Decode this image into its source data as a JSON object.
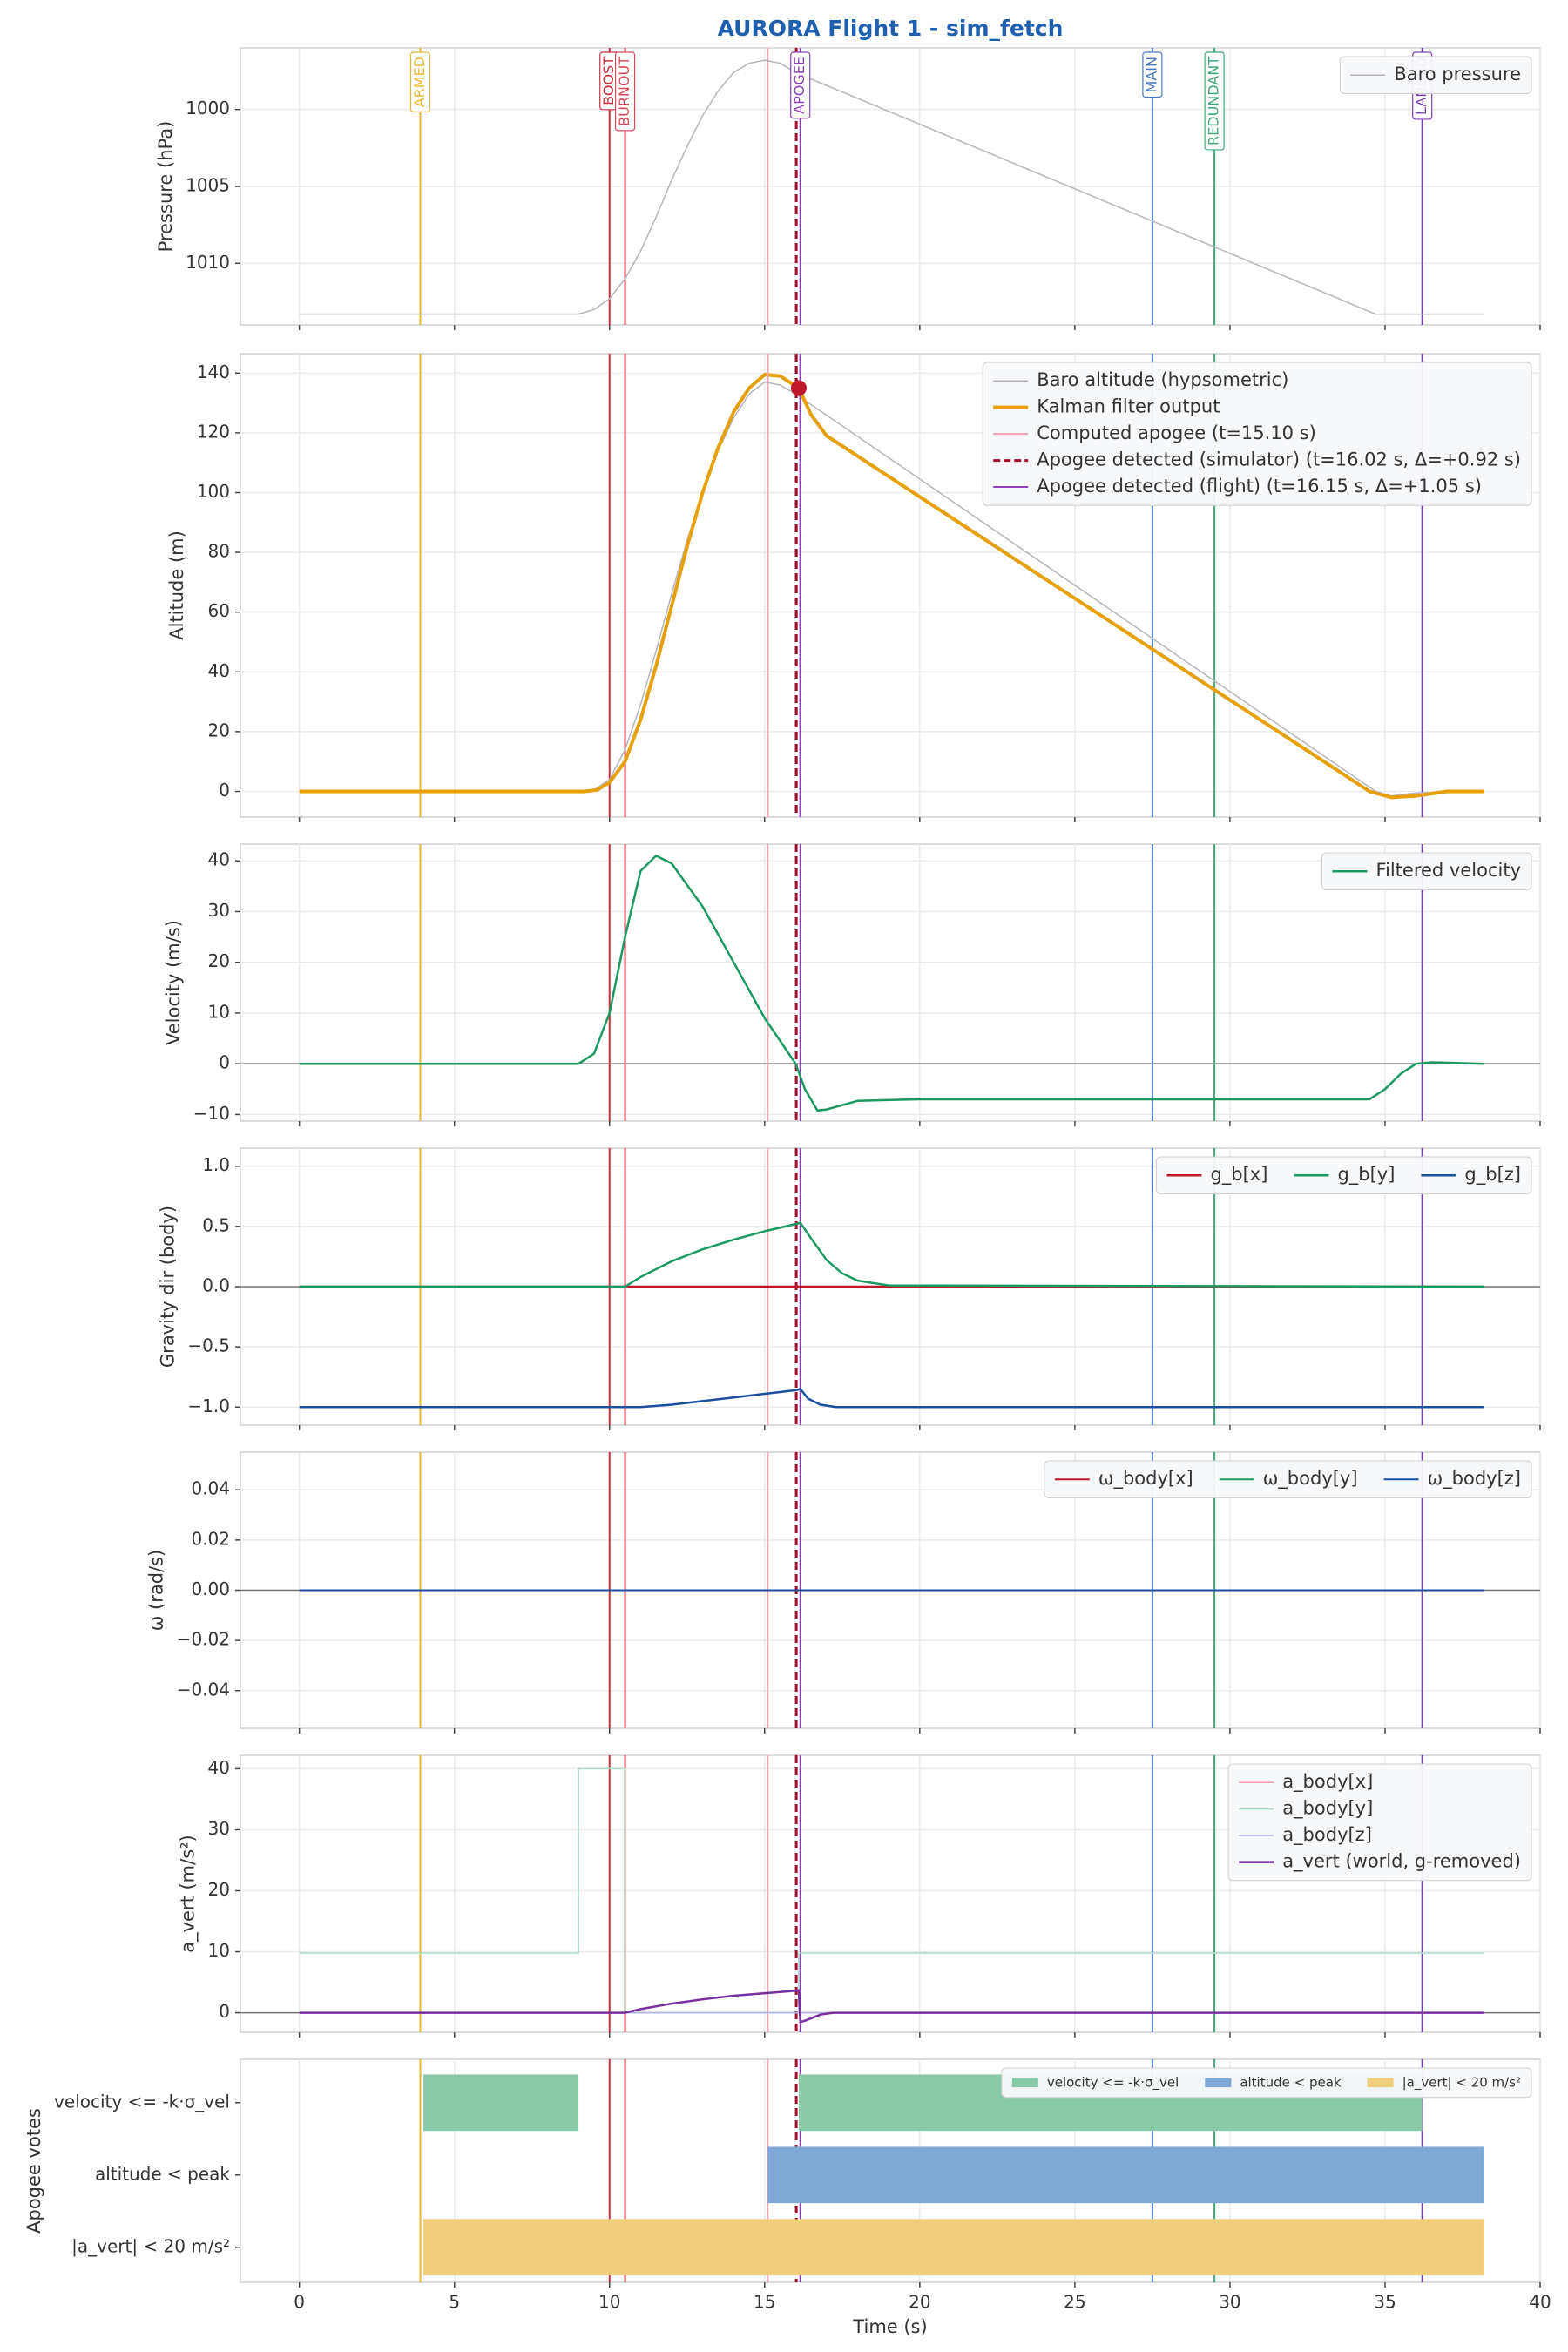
{
  "title": "AURORA Flight 1 - sim_fetch",
  "events": [
    {
      "label": "ARMED",
      "x": 3.9,
      "color": "#e8b830"
    },
    {
      "label": "BOOST",
      "x": 10.0,
      "color": "#c8303c"
    },
    {
      "label": "BURNOUT",
      "x": 10.5,
      "color": "#d84a5a"
    },
    {
      "x": 15.1,
      "color": "#f0a8b8"
    },
    {
      "x": 16.02,
      "color": "#a0102a",
      "style": "dashed"
    },
    {
      "label": "APOGEE",
      "x": 16.15,
      "color": "#9040b8"
    },
    {
      "label": "MAIN",
      "x": 27.5,
      "color": "#4a78c8"
    },
    {
      "label": "REDUNDANT",
      "x": 29.5,
      "color": "#40a878"
    },
    {
      "label": "LANDED",
      "x": 36.2,
      "color": "#7a40b0"
    }
  ],
  "chart_data": [
    {
      "type": "line",
      "ylabel": "Pressure (hPa)",
      "xlim": [
        -1.9,
        40
      ],
      "ylim": [
        1014,
        996
      ],
      "yticks": [
        1000,
        1005,
        1010
      ],
      "grid": true,
      "legend": "upper right",
      "series": [
        {
          "name": "Baro pressure",
          "color": "#b4b4bc",
          "linewidth": 1.5,
          "x": [
            0,
            9,
            9.5,
            10,
            10.5,
            11,
            11.5,
            12,
            12.5,
            13,
            13.5,
            14,
            14.5,
            15,
            15.5,
            16,
            34.7,
            38.2
          ],
          "values": [
            1013.3,
            1013.3,
            1013.0,
            1012.3,
            1011.0,
            1009.2,
            1007.0,
            1004.6,
            1002.4,
            1000.4,
            998.8,
            997.6,
            997.0,
            996.8,
            997.0,
            997.6,
            1013.3,
            1013.3
          ]
        }
      ]
    },
    {
      "type": "line",
      "ylabel": "Altitude (m)",
      "xlim": [
        -1.9,
        40
      ],
      "ylim": [
        -8.6,
        146.5
      ],
      "yticks": [
        0,
        20,
        40,
        60,
        80,
        100,
        120,
        140
      ],
      "grid": true,
      "legend": "upper right",
      "marker": {
        "x": 16.1,
        "y": 135,
        "color": "#c0182a"
      },
      "series": [
        {
          "name": "Baro altitude (hypsometric)",
          "color": "#b4b4bc",
          "linewidth": 1.5,
          "x": [
            0,
            9,
            9.5,
            10,
            10.5,
            11,
            11.5,
            12,
            12.5,
            13,
            13.5,
            14,
            14.5,
            15,
            15.5,
            16,
            34.7,
            35.2,
            36,
            38.2
          ],
          "values": [
            0,
            0,
            0.5,
            4,
            14,
            29,
            47,
            66,
            84,
            100,
            114,
            125,
            133,
            137,
            136,
            133,
            0,
            -1.5,
            -0.5,
            0
          ]
        },
        {
          "name": "Kalman filter output",
          "color": "#e6a00c",
          "linewidth": 4,
          "x": [
            0,
            9.2,
            9.6,
            10,
            10.5,
            11,
            11.5,
            12,
            12.5,
            13,
            13.5,
            14,
            14.5,
            15,
            15.5,
            16.1,
            16.5,
            17,
            34.5,
            35.2,
            36,
            37,
            38.2
          ],
          "values": [
            0,
            0,
            0.5,
            3,
            10,
            24,
            42,
            62,
            82,
            100,
            115,
            127,
            135,
            139.5,
            139,
            135,
            126,
            119,
            0,
            -2,
            -1.5,
            0,
            0
          ]
        },
        {
          "name": "Computed apogee (t=15.10 s)",
          "color": "#f0a0b0",
          "x": 15.1
        },
        {
          "name": "Apogee detected (simulator) (t=16.02 s, Δ=+0.92 s)",
          "color": "#a0102a",
          "x": 16.02,
          "style": "dashed"
        },
        {
          "name": "Apogee detected (flight) (t=16.15 s, Δ=+1.05 s)",
          "color": "#9040b8",
          "x": 16.15
        }
      ]
    },
    {
      "type": "line",
      "ylabel": "Velocity (m/s)",
      "xlim": [
        -1.9,
        40
      ],
      "ylim": [
        -11.3,
        43.3
      ],
      "yticks": [
        {
          "value": -10,
          "label": "−10"
        },
        0,
        10,
        20,
        30,
        40
      ],
      "grid": true,
      "hline": 0,
      "legend": "upper right",
      "series": [
        {
          "name": "Filtered velocity",
          "color": "#1a9a60",
          "linewidth": 2.5,
          "x": [
            0,
            9,
            9.5,
            10,
            10.5,
            11,
            11.5,
            12,
            13,
            14,
            15,
            16,
            16.3,
            16.7,
            17,
            18,
            20,
            34.5,
            35,
            35.5,
            36,
            36.5,
            38.2
          ],
          "values": [
            0,
            0,
            2,
            10,
            25,
            38,
            41,
            39.5,
            31,
            20,
            9,
            0,
            -5,
            -9.2,
            -9,
            -7.3,
            -7,
            -7,
            -5,
            -2,
            0,
            0.3,
            0
          ]
        }
      ]
    },
    {
      "type": "line",
      "ylabel": "Gravity dir (body)",
      "xlim": [
        -1.9,
        40
      ],
      "ylim": [
        -1.15,
        1.15
      ],
      "yticks": [
        {
          "value": -1,
          "label": "−1.0"
        },
        {
          "value": -0.5,
          "label": "−0.5"
        },
        {
          "value": 0,
          "label": "0.0"
        },
        {
          "value": 0.5,
          "label": "0.5"
        },
        {
          "value": 1,
          "label": "1.0"
        }
      ],
      "grid": true,
      "hline": 0,
      "legend": "upper right",
      "legend_ncol": 3,
      "series": [
        {
          "name": "g_b[x]",
          "color": "#c0182a",
          "linewidth": 2.5,
          "x": [
            0,
            38.2
          ],
          "values": [
            0,
            0
          ]
        },
        {
          "name": "g_b[y]",
          "color": "#1a9a60",
          "linewidth": 2.5,
          "x": [
            0,
            10.5,
            11,
            12,
            13,
            14,
            15,
            16,
            16.15,
            16.5,
            17,
            17.5,
            18,
            19,
            38.2
          ],
          "values": [
            0,
            0,
            0.08,
            0.21,
            0.31,
            0.39,
            0.46,
            0.52,
            0.53,
            0.4,
            0.22,
            0.11,
            0.05,
            0.01,
            0
          ]
        },
        {
          "name": "g_b[z]",
          "color": "#1a4fa0",
          "linewidth": 2.5,
          "x": [
            0,
            11,
            12,
            13,
            14,
            15,
            16,
            16.15,
            16.4,
            16.8,
            17.3,
            38.2
          ],
          "values": [
            -1,
            -1,
            -0.98,
            -0.95,
            -0.92,
            -0.89,
            -0.86,
            -0.85,
            -0.93,
            -0.98,
            -1,
            -1
          ]
        }
      ]
    },
    {
      "type": "line",
      "ylabel": "ω (rad/s)",
      "xlim": [
        -1.9,
        40
      ],
      "ylim": [
        -0.055,
        0.055
      ],
      "yticks": [
        {
          "value": -0.04,
          "label": "−0.04"
        },
        {
          "value": -0.02,
          "label": "−0.02"
        },
        {
          "value": 0,
          "label": "0.00"
        },
        {
          "value": 0.02,
          "label": "0.02"
        },
        {
          "value": 0.04,
          "label": "0.04"
        }
      ],
      "grid": true,
      "hline": 0,
      "legend": "upper right",
      "legend_ncol": 3,
      "series": [
        {
          "name": "ω_body[x]",
          "color": "#c0182a",
          "linewidth": 2,
          "x": [
            0,
            38.2
          ],
          "values": [
            0,
            0
          ]
        },
        {
          "name": "ω_body[y]",
          "color": "#1a9a60",
          "linewidth": 2,
          "x": [
            0,
            38.2
          ],
          "values": [
            0,
            0
          ]
        },
        {
          "name": "ω_body[z]",
          "color": "#1a4fa0",
          "linewidth": 2,
          "x": [
            0,
            38.2
          ],
          "values": [
            0,
            0
          ]
        }
      ]
    },
    {
      "type": "line",
      "ylabel": "a_vert (m/s²)",
      "xlim": [
        -1.9,
        40
      ],
      "ylim": [
        -3.2,
        42.2
      ],
      "yticks": [
        0,
        10,
        20,
        30,
        40
      ],
      "grid": true,
      "hline": 0,
      "legend": "upper right",
      "series": [
        {
          "name": "a_body[x]",
          "color": "#f0a0a8",
          "linewidth": 1.5,
          "x": [
            0,
            38.2
          ],
          "values": [
            0,
            0
          ]
        },
        {
          "name": "a_body[y]",
          "color": "#a8dcc4",
          "linewidth": 1.5,
          "x": [
            0,
            9,
            9,
            10.5,
            10.5,
            16.1,
            16.1,
            38.2
          ],
          "values": [
            9.8,
            9.8,
            40,
            40,
            0,
            0,
            9.8,
            9.8
          ]
        },
        {
          "name": "a_body[z]",
          "color": "#b0b8e8",
          "linewidth": 1.5,
          "x": [
            0,
            38.2
          ],
          "values": [
            0,
            0
          ]
        },
        {
          "name": "a_vert (world, g-removed)",
          "color": "#7a2fa0",
          "linewidth": 2.5,
          "x": [
            0,
            10.5,
            11,
            12,
            13,
            14,
            15,
            16,
            16.1,
            16.15,
            16.3,
            16.8,
            17.2,
            38.2
          ],
          "values": [
            0,
            0,
            0.6,
            1.5,
            2.2,
            2.8,
            3.2,
            3.6,
            3.7,
            -1.5,
            -1.3,
            -0.3,
            0,
            0
          ]
        }
      ]
    },
    {
      "type": "broken_barh",
      "ylabel": "Apogee votes",
      "xlabel": "Time (s)",
      "xlim": [
        -1.9,
        40
      ],
      "xticks": [
        0,
        5,
        10,
        15,
        20,
        25,
        30,
        35,
        40
      ],
      "grid": true,
      "legend": "upper right",
      "legend_ncol": 3,
      "series": [
        {
          "name": "velocity <= -k·σ_vel",
          "color": "#88c9a8",
          "spans": [
            [
              4.0,
              9.0
            ],
            [
              16.1,
              36.2
            ]
          ]
        },
        {
          "name": "altitude < peak",
          "color": "#7fa8d6",
          "spans": [
            [
              15.1,
              38.2
            ]
          ]
        },
        {
          "name": "|a_vert| < 20 m/s²",
          "color": "#f0cd78",
          "spans": [
            [
              4.0,
              38.2
            ]
          ]
        }
      ]
    }
  ]
}
